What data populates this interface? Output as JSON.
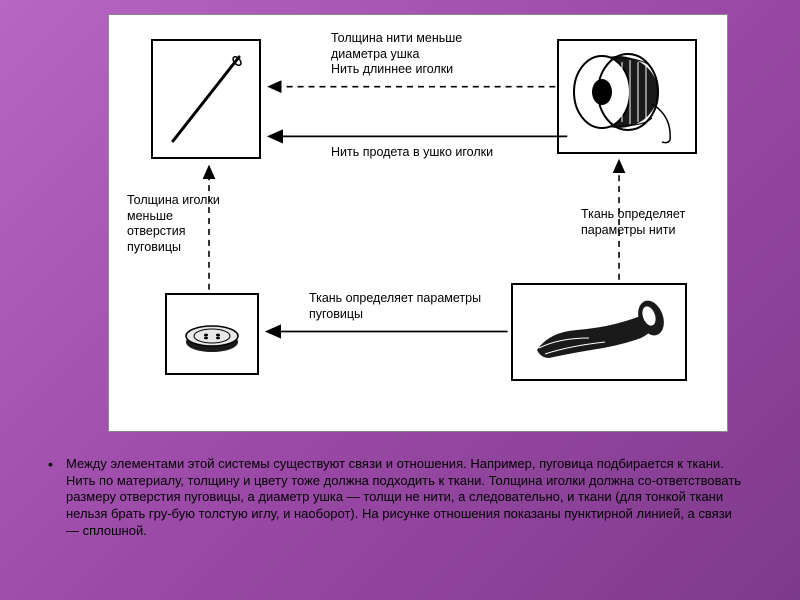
{
  "diagram": {
    "background": "#ffffff",
    "border_color": "#888888",
    "node_border": "#000000",
    "labels": {
      "top_dashed": "Толщина нити меньше\nдиаметра ушка\nНить длиннее иголки",
      "mid_solid": "Нить продета в ушко иголки",
      "left_dashed": "Толщина иголки\nменьше\nотверстия\nпуговицы",
      "right_dashed": "Ткань определяет\nпараметры нити",
      "bottom_solid": "Ткань определяет параметры\nпуговицы"
    },
    "nodes": {
      "needle": {
        "name": "needle"
      },
      "spool": {
        "name": "thread-spool"
      },
      "button": {
        "name": "button"
      },
      "fabric": {
        "name": "fabric-roll"
      }
    },
    "arrow_style": {
      "stroke": "#000000",
      "width": 1.6,
      "dash": "6 5"
    }
  },
  "caption": "Между элементами этой системы существуют связи и отношения. Например, пуговица подбирается к ткани. Нить по материалу, толщину и цвету тоже должна подходить к ткани. Толщина иголки должна со-ответствовать размеру отверстия пуговицы, а диаметр ушка — толщи не нити, а следовательно, и ткани (для тонкой ткани нельзя брать гру-бую толстую иглу, и наоборот). На рисунке отношения показаны пунктирной линией, а связи — сплошной."
}
